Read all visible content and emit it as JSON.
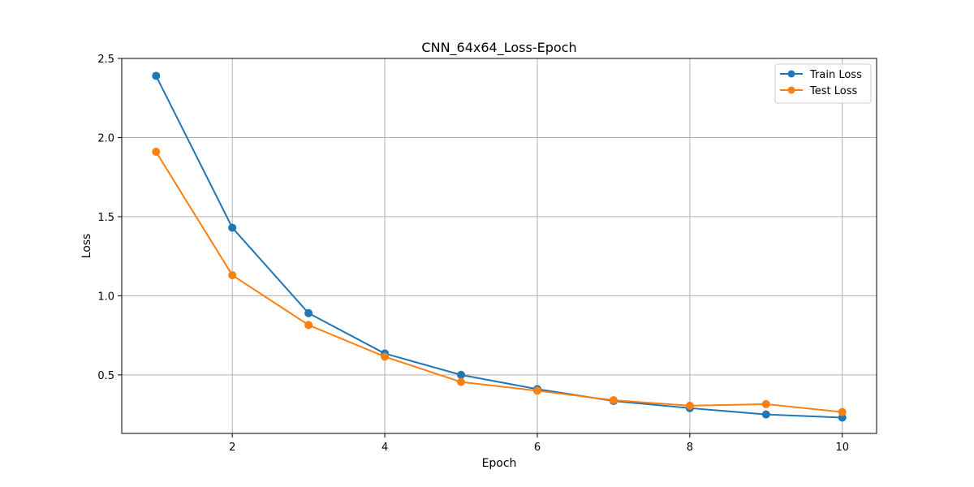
{
  "chart_data": {
    "type": "line",
    "title": "CNN_64x64_Loss-Epoch",
    "xlabel": "Epoch",
    "ylabel": "Loss",
    "xlim": [
      0.55,
      10.45
    ],
    "ylim": [
      0.13,
      2.5
    ],
    "xticks": [
      2,
      4,
      6,
      8,
      10
    ],
    "yticks": [
      0.5,
      1.0,
      1.5,
      2.0,
      2.5
    ],
    "xtick_labels": [
      "2",
      "4",
      "6",
      "8",
      "10"
    ],
    "ytick_labels": [
      "0.5",
      "1.0",
      "1.5",
      "2.0",
      "2.5"
    ],
    "grid": true,
    "legend_position": "top-right",
    "x": [
      1,
      2,
      3,
      4,
      5,
      6,
      7,
      8,
      9,
      10
    ],
    "series": [
      {
        "name": "Train Loss",
        "color": "#1f77b4",
        "marker": "circle",
        "values": [
          2.39,
          1.43,
          0.89,
          0.635,
          0.5,
          0.41,
          0.335,
          0.29,
          0.25,
          0.23
        ]
      },
      {
        "name": "Test Loss",
        "color": "#ff7f0e",
        "marker": "circle",
        "values": [
          1.91,
          1.13,
          0.815,
          0.615,
          0.455,
          0.4,
          0.34,
          0.305,
          0.315,
          0.265
        ]
      }
    ]
  }
}
